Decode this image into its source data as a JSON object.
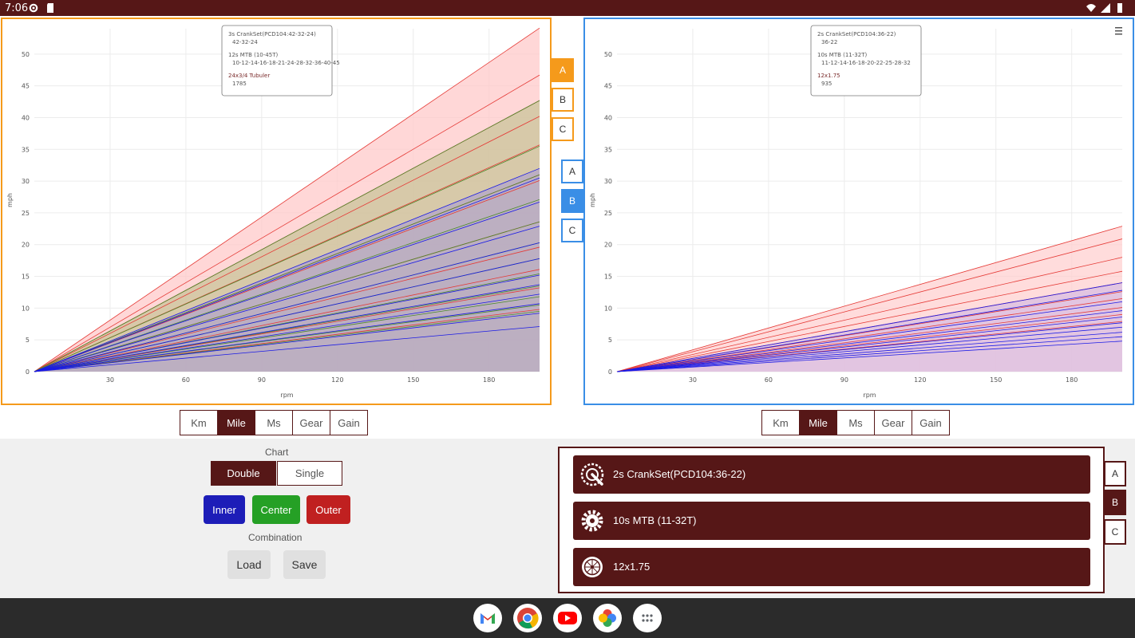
{
  "status": {
    "time": "7:06"
  },
  "left_chart": {
    "ylabel": "mph",
    "xlabel": "rpm",
    "yticks": [
      "0",
      "5",
      "10",
      "15",
      "20",
      "25",
      "30",
      "35",
      "40",
      "45",
      "50"
    ],
    "xticks": [
      "30",
      "60",
      "90",
      "120",
      "150",
      "180"
    ],
    "legend": [
      {
        "title": "3s CrankSet(PCD104:42-32-24)",
        "value": "42-32-24"
      },
      {
        "title": "12s MTB (10-45T)",
        "value": "10-12-14-16-18-21-24-28-32-36-40-45"
      },
      {
        "title": "24x3/4 Tubuler",
        "value": "1785"
      }
    ]
  },
  "right_chart": {
    "ylabel": "mph",
    "xlabel": "rpm",
    "menu_icon": "hamburger-icon",
    "yticks": [
      "0",
      "5",
      "10",
      "15",
      "20",
      "25",
      "30",
      "35",
      "40",
      "45",
      "50"
    ],
    "xticks": [
      "30",
      "60",
      "90",
      "120",
      "150",
      "180"
    ],
    "legend": [
      {
        "title": "2s CrankSet(PCD104:36-22)",
        "value": "36-22"
      },
      {
        "title": "10s MTB (11-32T)",
        "value": "11-12-14-16-18-20-22-25-28-32"
      },
      {
        "title": "12x1.75",
        "value": "935"
      }
    ]
  },
  "chart_data": [
    {
      "type": "line",
      "xlim": [
        0,
        200
      ],
      "ylim": [
        0,
        54
      ],
      "xlabel": "rpm",
      "ylabel": "mph",
      "grid": true,
      "series": [
        {
          "color": "#e53935",
          "fill": "#ffc9c9",
          "values_at_200rpm": [
            54.1,
            46.7,
            42.7,
            40.2,
            35.7,
            31.0,
            30.1,
            23.6,
            19.6,
            16.1,
            13.2,
            9.8
          ]
        },
        {
          "color": "#4a8a2c",
          "fill": "#c9c49a",
          "values_at_200rpm": [
            42.7,
            35.5,
            31.0,
            27.1,
            23.6,
            20.3,
            17.8,
            15.4,
            13.5,
            11.8,
            10.5,
            9.5
          ]
        },
        {
          "color": "#1a1ae6",
          "fill": "#b3a6c9",
          "values_at_200rpm": [
            32.0,
            30.5,
            26.7,
            22.9,
            20.3,
            17.8,
            15.2,
            13.7,
            12.2,
            10.7,
            9.2,
            7.1
          ]
        }
      ]
    },
    {
      "type": "line",
      "xlim": [
        0,
        200
      ],
      "ylim": [
        0,
        54
      ],
      "xlabel": "rpm",
      "ylabel": "mph",
      "grid": true,
      "series": [
        {
          "color": "#e53935",
          "fill": "#ffd0d0",
          "values_at_200rpm": [
            22.9,
            20.9,
            18.0,
            15.8,
            14.0,
            12.6,
            11.5,
            10.1,
            9.0,
            7.9
          ]
        },
        {
          "color": "#1a1ae6",
          "fill": "#d8bde3",
          "values_at_200rpm": [
            14.0,
            12.8,
            11.0,
            9.6,
            8.6,
            7.7,
            7.0,
            6.2,
            5.5,
            4.8
          ]
        }
      ]
    }
  ],
  "left_selector": [
    "A",
    "B",
    "C"
  ],
  "left_selector_active": "A",
  "right_selector": [
    "A",
    "B",
    "C"
  ],
  "right_selector_active": "B",
  "units_left": [
    "Km",
    "Mile",
    "Ms",
    "Gear",
    "Gain"
  ],
  "units_right": [
    "Km",
    "Mile",
    "Ms",
    "Gear",
    "Gain"
  ],
  "units_active": "Mile",
  "controls": {
    "chart_label": "Chart",
    "double": "Double",
    "single": "Single",
    "inner": "Inner",
    "center": "Center",
    "outer": "Outer",
    "combination_label": "Combination",
    "load": "Load",
    "save": "Save"
  },
  "components": [
    {
      "label": "2s CrankSet(PCD104:36-22)",
      "icon": "crankset-icon"
    },
    {
      "label": "10s MTB (11-32T)",
      "icon": "cog-icon"
    },
    {
      "label": "12x1.75",
      "icon": "wheel-icon"
    }
  ],
  "component_selector": [
    "A",
    "B",
    "C"
  ],
  "component_selector_active": "B",
  "colors": {
    "brand": "#561717",
    "orange": "#f59a1b",
    "blue": "#3a8ee6",
    "inner": "#1d1db8",
    "center": "#25a025",
    "outer": "#c02020"
  },
  "dock": [
    "gmail-icon",
    "chrome-icon",
    "youtube-icon",
    "photos-icon",
    "app-launcher-icon"
  ]
}
